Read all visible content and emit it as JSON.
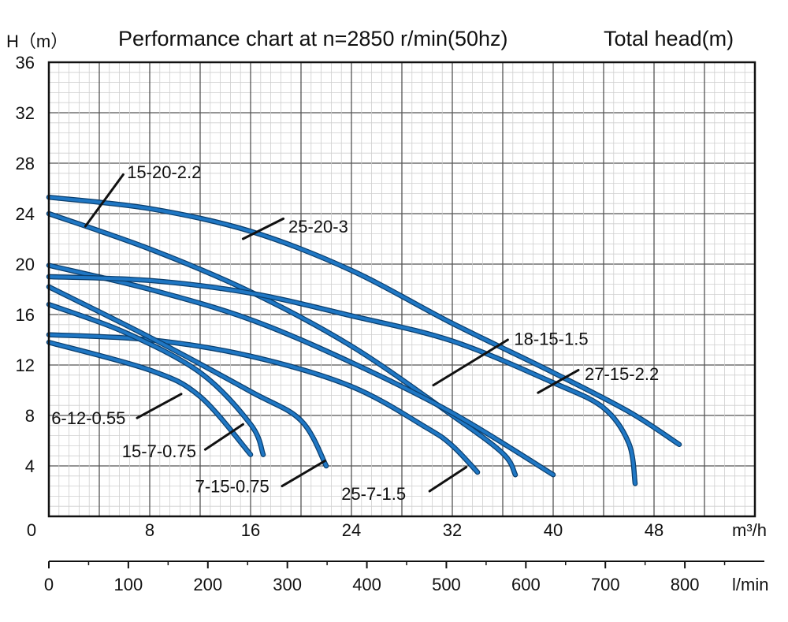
{
  "header": {
    "y_axis_title": "H（m）",
    "title": "Performance chart at n=2850 r/min(50hz)",
    "right_label": "Total head(m)"
  },
  "colors": {
    "curve": "#1f77c4",
    "curve_outline": "#0b3f6e",
    "grid_minor": "#cfcfcf",
    "grid_major": "#555555",
    "leader": "#111111"
  },
  "chart_data": {
    "type": "line",
    "title": "Performance chart at n=2850 r/min(50hz)",
    "xlabel": "m³/h",
    "x2label": "l/min",
    "ylabel": "H（m）",
    "ylabel_right": "Total head(m)",
    "xlim": [
      0,
      56
    ],
    "ylim": [
      0,
      36
    ],
    "x_ticks": [
      {
        "value": 0,
        "label": "0"
      },
      {
        "value": 8,
        "label": "8"
      },
      {
        "value": 16,
        "label": "16"
      },
      {
        "value": 24,
        "label": "24"
      },
      {
        "value": 32,
        "label": "32"
      },
      {
        "value": 40,
        "label": "40"
      },
      {
        "value": 48,
        "label": "48"
      }
    ],
    "y_ticks": [
      {
        "value": 4,
        "label": "4"
      },
      {
        "value": 8,
        "label": "8"
      },
      {
        "value": 12,
        "label": "12"
      },
      {
        "value": 16,
        "label": "16"
      },
      {
        "value": 20,
        "label": "20"
      },
      {
        "value": 24,
        "label": "24"
      },
      {
        "value": 28,
        "label": "28"
      },
      {
        "value": 32,
        "label": "32"
      },
      {
        "value": 36,
        "label": "36"
      }
    ],
    "x2_ticks": [
      {
        "value": 0,
        "label": "0"
      },
      {
        "value": 100,
        "label": "100"
      },
      {
        "value": 200,
        "label": "200"
      },
      {
        "value": 300,
        "label": "300"
      },
      {
        "value": 400,
        "label": "400"
      },
      {
        "value": 500,
        "label": "500"
      },
      {
        "value": 600,
        "label": "600"
      },
      {
        "value": 700,
        "label": "700"
      },
      {
        "value": 800,
        "label": "800"
      }
    ],
    "x2lim": [
      0,
      900
    ],
    "grid": true,
    "series": [
      {
        "name": "25-20-3",
        "points": [
          [
            0,
            25.3
          ],
          [
            8,
            24.4
          ],
          [
            16,
            22.6
          ],
          [
            24,
            19.5
          ],
          [
            32,
            15.3
          ],
          [
            40,
            11.4
          ],
          [
            46,
            8.3
          ],
          [
            50,
            5.7
          ]
        ]
      },
      {
        "name": "15-20-2.2",
        "points": [
          [
            0,
            24.0
          ],
          [
            8,
            21.2
          ],
          [
            16,
            17.8
          ],
          [
            24,
            13.5
          ],
          [
            32,
            8.0
          ],
          [
            36,
            5.0
          ],
          [
            37,
            3.3
          ]
        ]
      },
      {
        "name": "18-15-1.5",
        "points": [
          [
            0,
            19.9
          ],
          [
            8,
            18.0
          ],
          [
            16,
            15.6
          ],
          [
            24,
            12.2
          ],
          [
            32,
            8.2
          ],
          [
            40,
            3.3
          ]
        ]
      },
      {
        "name": "27-15-2.2",
        "points": [
          [
            0,
            19.0
          ],
          [
            8,
            18.7
          ],
          [
            16,
            17.7
          ],
          [
            24,
            15.9
          ],
          [
            32,
            13.9
          ],
          [
            40,
            10.6
          ],
          [
            44,
            8.6
          ],
          [
            46,
            5.8
          ],
          [
            46.5,
            2.6
          ]
        ]
      },
      {
        "name": "25-7-1.5",
        "points": [
          [
            0,
            14.4
          ],
          [
            8,
            14.0
          ],
          [
            16,
            12.7
          ],
          [
            24,
            10.3
          ],
          [
            30,
            7.0
          ],
          [
            32,
            5.6
          ],
          [
            34,
            3.5
          ]
        ]
      },
      {
        "name": "7-15-0.75",
        "points": [
          [
            0,
            18.2
          ],
          [
            8,
            14.2
          ],
          [
            16,
            9.9
          ],
          [
            20,
            7.6
          ],
          [
            22,
            4.0
          ]
        ]
      },
      {
        "name": "15-7-0.75",
        "points": [
          [
            0,
            16.8
          ],
          [
            6,
            14.6
          ],
          [
            12,
            11.4
          ],
          [
            16,
            7.3
          ],
          [
            17,
            4.9
          ]
        ]
      },
      {
        "name": "6-12-0.55",
        "points": [
          [
            0,
            13.8
          ],
          [
            8,
            11.6
          ],
          [
            12,
            9.5
          ],
          [
            16,
            4.9
          ]
        ]
      }
    ],
    "annotations": [
      {
        "text": "15-20-2.2",
        "x": 6.2,
        "y": 27.3,
        "line_from": [
          2.9,
          23.0
        ],
        "line_to": [
          5.9,
          27.1
        ]
      },
      {
        "text": "25-20-3",
        "x": 19.0,
        "y": 23.0,
        "line_from": [
          15.4,
          22.0
        ],
        "line_to": [
          18.6,
          23.6
        ]
      },
      {
        "text": "18-15-1.5",
        "x": 36.9,
        "y": 14.1,
        "line_from": [
          30.5,
          10.4
        ],
        "line_to": [
          36.4,
          14.0
        ]
      },
      {
        "text": "27-15-2.2",
        "x": 42.5,
        "y": 11.3,
        "line_from": [
          38.8,
          9.8
        ],
        "line_to": [
          42.0,
          11.6
        ]
      },
      {
        "text": "6-12-0.55",
        "x": 0.2,
        "y": 7.8,
        "line_from": [
          7.0,
          7.8
        ],
        "line_to": [
          10.5,
          9.7
        ]
      },
      {
        "text": "15-7-0.75",
        "x": 5.8,
        "y": 5.2,
        "line_from": [
          12.4,
          5.3
        ],
        "line_to": [
          15.4,
          7.3
        ]
      },
      {
        "text": "7-15-0.75",
        "x": 11.6,
        "y": 2.4,
        "line_from": [
          18.5,
          2.4
        ],
        "line_to": [
          21.9,
          4.4
        ]
      },
      {
        "text": "25-7-1.5",
        "x": 23.2,
        "y": 1.8,
        "line_from": [
          30.2,
          2.0
        ],
        "line_to": [
          33.1,
          3.9
        ]
      }
    ]
  }
}
